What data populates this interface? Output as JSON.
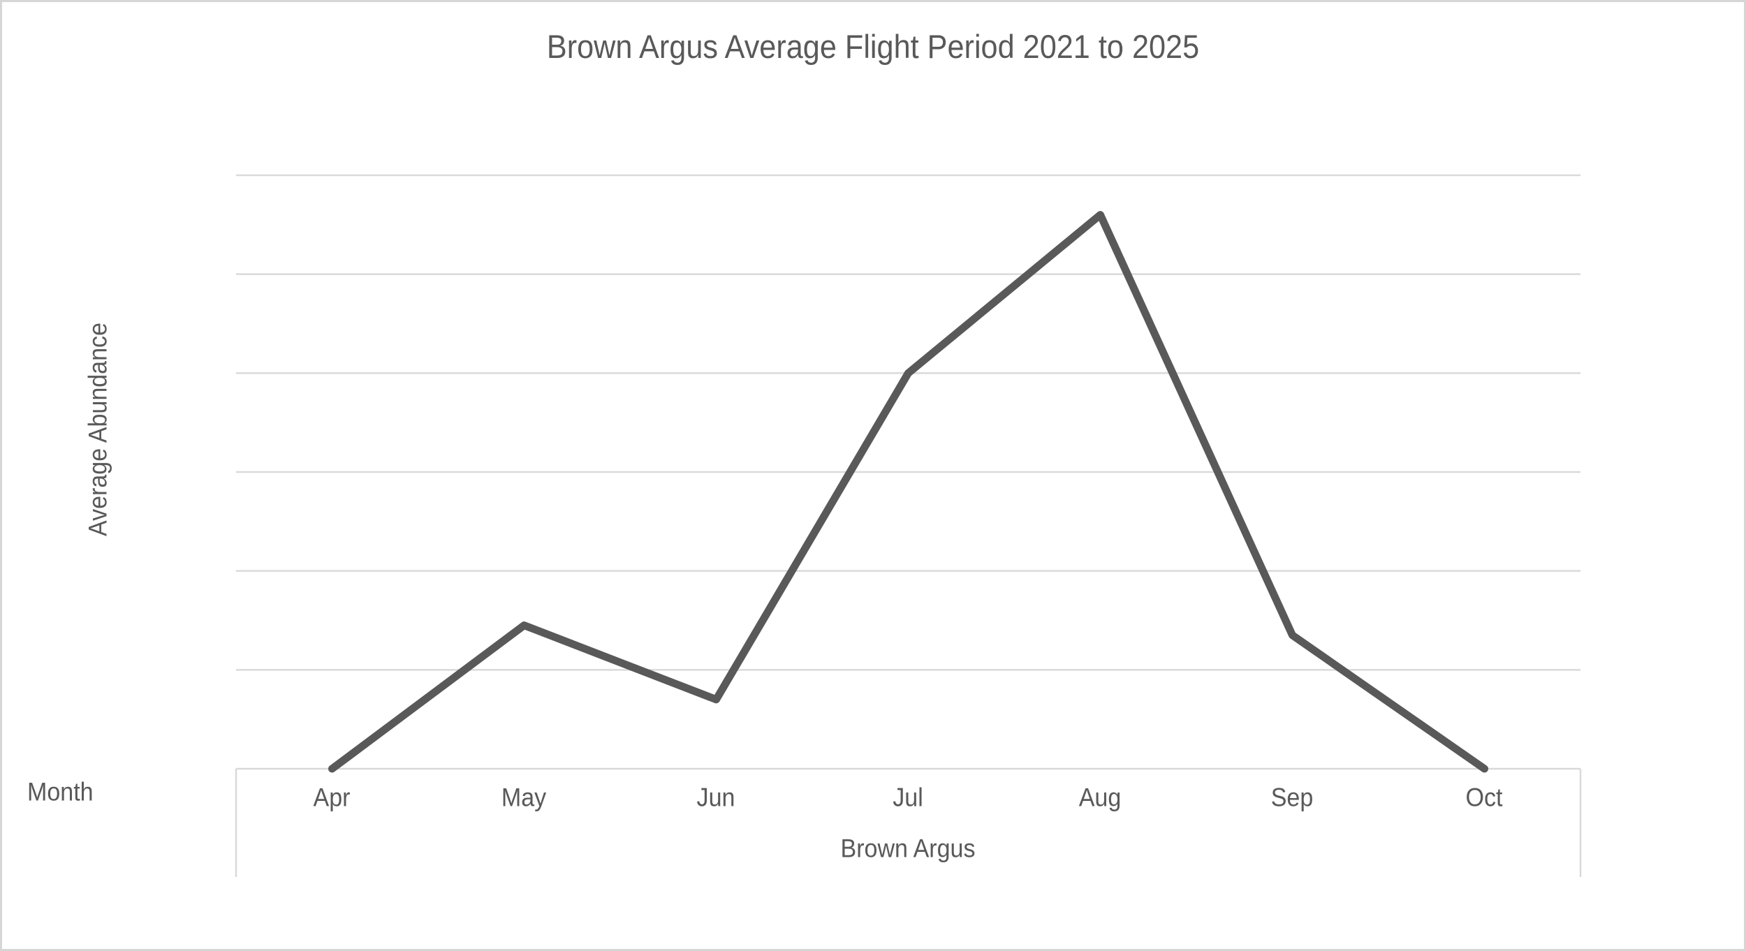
{
  "chart_data": {
    "type": "line",
    "title": "Brown Argus Average Flight Period 2021 to 2025",
    "categories": [
      "Apr",
      "May",
      "Jun",
      "Jul",
      "Aug",
      "Sep",
      "Oct"
    ],
    "series": [
      {
        "name": "Brown Argus",
        "values": [
          0,
          1.45,
          0.7,
          4.0,
          5.6,
          1.35,
          0
        ]
      }
    ],
    "xlabel": "Month",
    "x_group_label": "Brown Argus",
    "ylabel": "Average Abundance",
    "ylim": [
      0,
      6
    ],
    "gridline_step": 1,
    "y_tick_labels": "none",
    "x_tick_labels_visible": true,
    "legend": "none",
    "grid": "horizontal",
    "colors": {
      "line": "#595959",
      "text": "#595959",
      "gridline": "#dadada",
      "axis_line": "#d9d9d9",
      "outer_border": "#d6d6d6"
    }
  }
}
